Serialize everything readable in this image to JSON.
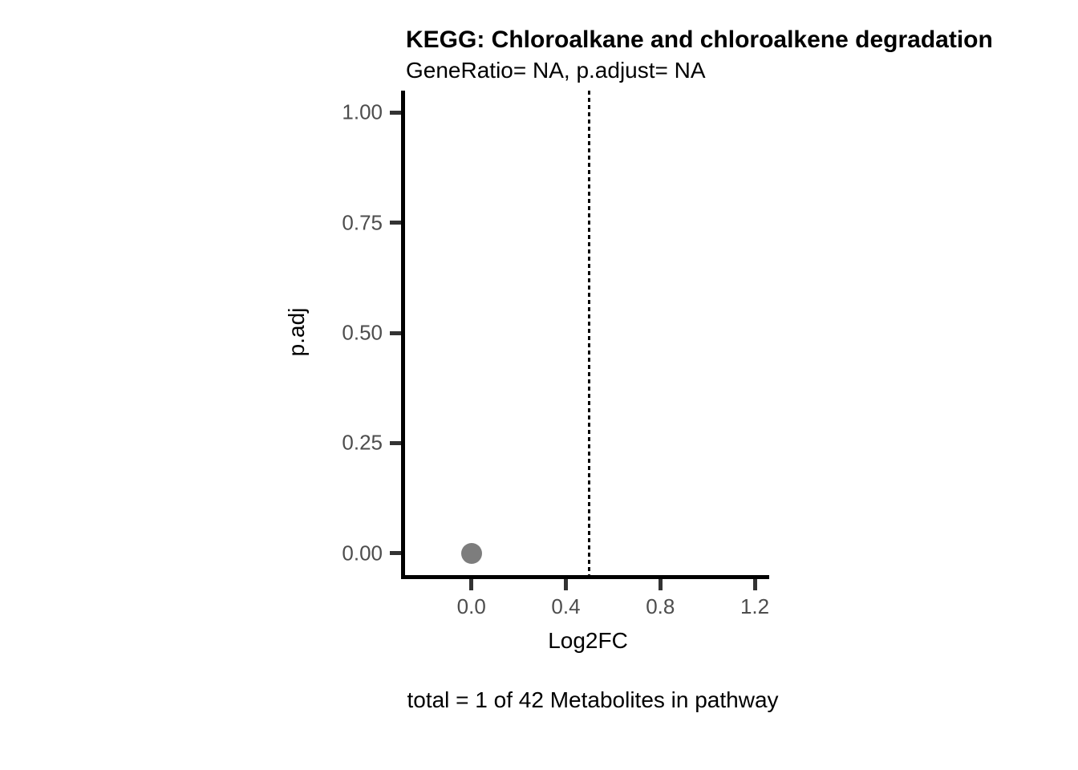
{
  "chart_data": {
    "type": "scatter",
    "title": "KEGG: Chloroalkane and chloroalkene degradation",
    "subtitle": "GeneRatio= NA, p.adjust= NA",
    "caption": "total = 1 of 42 Metabolites in pathway",
    "xlabel": "Log2FC",
    "ylabel": "p.adj",
    "points": [
      {
        "x": 0.0,
        "y": 0.0
      }
    ],
    "vline": {
      "x": 0.5,
      "style": "dashed",
      "color": "#000000"
    },
    "xlim": [
      -0.281,
      1.261
    ],
    "ylim": [
      -0.05,
      1.05
    ],
    "x_ticks": {
      "values": [
        0.0,
        0.4,
        0.8,
        1.2
      ],
      "labels": [
        "0.0",
        "0.4",
        "0.8",
        "1.2"
      ]
    },
    "y_ticks": {
      "values": [
        0.0,
        0.25,
        0.5,
        0.75,
        1.0
      ],
      "labels": [
        "0.00",
        "0.25",
        "0.50",
        "0.75",
        "1.00"
      ]
    },
    "grid": false,
    "legend": "none",
    "colors": {
      "background": "#ffffff",
      "point": "#7d7d7d",
      "axis_line": "#000000",
      "tick_mark": "#333333",
      "tick_label": "#4d4d4d",
      "text": "#000000"
    }
  }
}
